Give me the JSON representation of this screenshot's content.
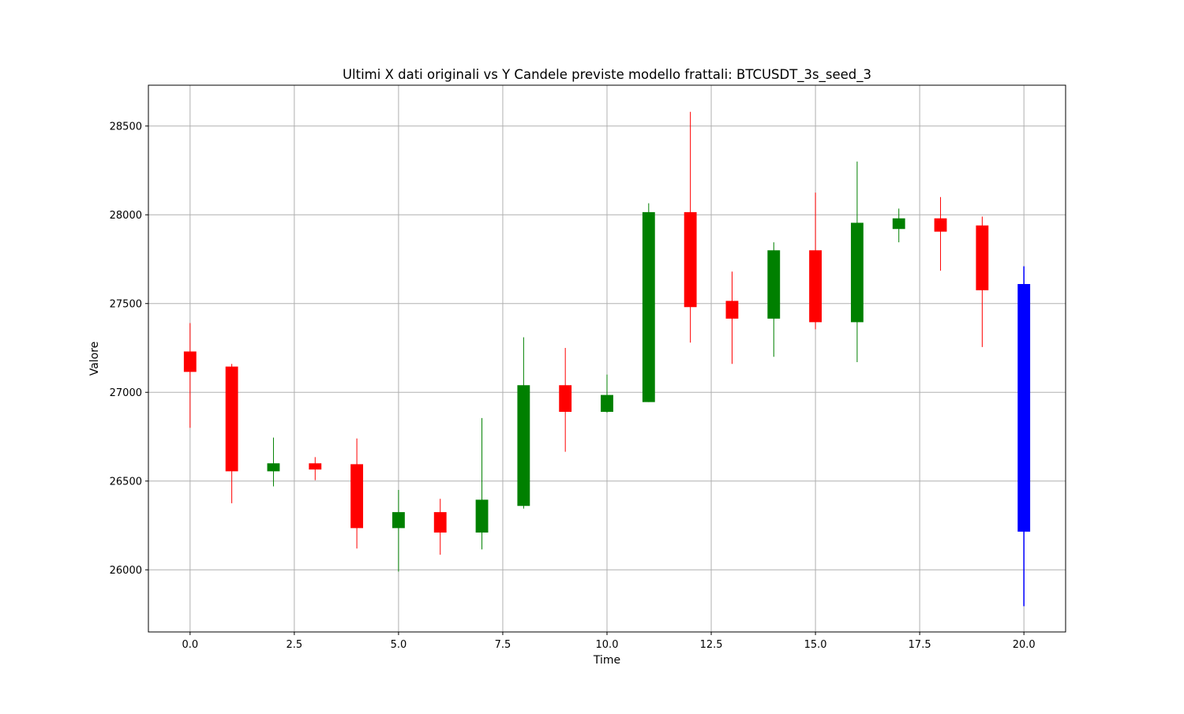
{
  "chart_data": {
    "type": "candlestick",
    "title": "Ultimi X dati originali vs Y Candele previste modello frattali: BTCUSDT_3s_seed_3",
    "xlabel": "Time",
    "ylabel": "Valore",
    "xlim": [
      -1,
      21
    ],
    "ylim": [
      25650,
      28730
    ],
    "x_ticks": [
      0.0,
      2.5,
      5.0,
      7.5,
      10.0,
      12.5,
      15.0,
      17.5,
      20.0
    ],
    "x_tick_labels": [
      "0.0",
      "2.5",
      "5.0",
      "7.5",
      "10.0",
      "12.5",
      "15.0",
      "17.5",
      "20.0"
    ],
    "y_ticks": [
      26000,
      26500,
      27000,
      27500,
      28000,
      28500
    ],
    "y_tick_labels": [
      "26000",
      "26500",
      "27000",
      "27500",
      "28000",
      "28500"
    ],
    "grid": true,
    "colors": {
      "up": "#008000",
      "down": "#ff0000",
      "predicted": "#0000ff",
      "grid": "#b0b0b0"
    },
    "candles": [
      {
        "x": 0,
        "open": 27230,
        "high": 27390,
        "low": 26800,
        "close": 27115,
        "kind": "down"
      },
      {
        "x": 1,
        "open": 27145,
        "high": 27160,
        "low": 26375,
        "close": 26555,
        "kind": "down"
      },
      {
        "x": 2,
        "open": 26555,
        "high": 26745,
        "low": 26470,
        "close": 26600,
        "kind": "up"
      },
      {
        "x": 3,
        "open": 26600,
        "high": 26635,
        "low": 26505,
        "close": 26565,
        "kind": "down"
      },
      {
        "x": 4,
        "open": 26595,
        "high": 26740,
        "low": 26120,
        "close": 26235,
        "kind": "down"
      },
      {
        "x": 5,
        "open": 26235,
        "high": 26450,
        "low": 25990,
        "close": 26325,
        "kind": "up"
      },
      {
        "x": 6,
        "open": 26325,
        "high": 26400,
        "low": 26085,
        "close": 26210,
        "kind": "down"
      },
      {
        "x": 7,
        "open": 26210,
        "high": 26855,
        "low": 26115,
        "close": 26395,
        "kind": "up"
      },
      {
        "x": 8,
        "open": 26360,
        "high": 27310,
        "low": 26345,
        "close": 27040,
        "kind": "up"
      },
      {
        "x": 9,
        "open": 27040,
        "high": 27250,
        "low": 26665,
        "close": 26890,
        "kind": "down"
      },
      {
        "x": 10,
        "open": 26890,
        "high": 27100,
        "low": 26885,
        "close": 26985,
        "kind": "up"
      },
      {
        "x": 11,
        "open": 26945,
        "high": 28065,
        "low": 26945,
        "close": 28015,
        "kind": "up"
      },
      {
        "x": 12,
        "open": 28015,
        "high": 28580,
        "low": 27280,
        "close": 27480,
        "kind": "down"
      },
      {
        "x": 13,
        "open": 27515,
        "high": 27680,
        "low": 27160,
        "close": 27415,
        "kind": "down"
      },
      {
        "x": 14,
        "open": 27415,
        "high": 27845,
        "low": 27200,
        "close": 27800,
        "kind": "up"
      },
      {
        "x": 15,
        "open": 27800,
        "high": 28125,
        "low": 27355,
        "close": 27395,
        "kind": "down"
      },
      {
        "x": 16,
        "open": 27395,
        "high": 28300,
        "low": 27170,
        "close": 27955,
        "kind": "up"
      },
      {
        "x": 17,
        "open": 27920,
        "high": 28035,
        "low": 27845,
        "close": 27980,
        "kind": "up"
      },
      {
        "x": 18,
        "open": 27980,
        "high": 28100,
        "low": 27685,
        "close": 27905,
        "kind": "down"
      },
      {
        "x": 19,
        "open": 27940,
        "high": 27990,
        "low": 27255,
        "close": 27575,
        "kind": "down"
      },
      {
        "x": 20,
        "open": 27610,
        "high": 27710,
        "low": 25795,
        "close": 26215,
        "kind": "predicted"
      }
    ]
  }
}
